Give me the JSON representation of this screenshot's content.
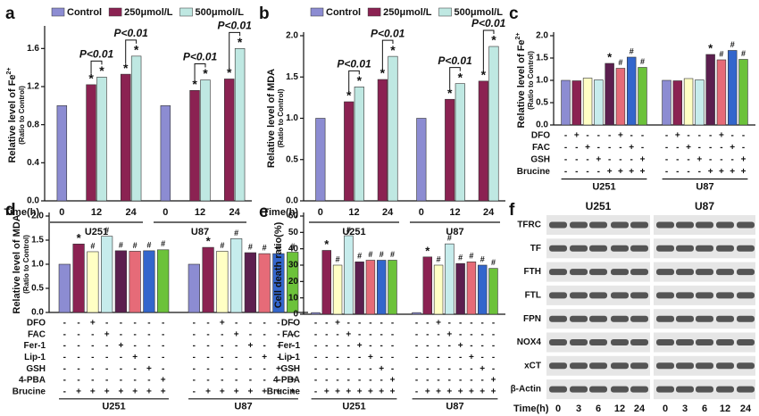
{
  "chart_data": [
    {
      "type": "bar",
      "panel": "a",
      "ylabel": "Relative level of Fe",
      "ylabel_sup": "2+",
      "ylabel2": "(Ratio to Control)",
      "xlabel": "Time(h)",
      "categories": [
        "0",
        "12",
        "24",
        "0",
        "12",
        "24"
      ],
      "groups": [
        "U251",
        "U87"
      ],
      "legend": "top",
      "series": [
        {
          "name": "Control",
          "color": "#8c8cd2",
          "values": [
            1.0,
            null,
            null,
            1.0,
            null,
            null
          ]
        },
        {
          "name": "250μmol/L",
          "color": "#8b2252",
          "values": [
            null,
            1.22,
            1.33,
            null,
            1.16,
            1.28
          ],
          "sig": [
            null,
            "*",
            "*",
            null,
            "*",
            "*"
          ]
        },
        {
          "name": "500μmol/L",
          "color": "#bfe8e2",
          "values": [
            null,
            1.3,
            1.52,
            null,
            1.27,
            1.6
          ],
          "sig": [
            null,
            "*",
            "*",
            null,
            "*",
            "*"
          ]
        }
      ],
      "comparison_labels": [
        null,
        "P<0.01",
        "P<0.01",
        null,
        "P<0.01",
        "P<0.01"
      ],
      "ylim": [
        0,
        1.8
      ],
      "yticks": [
        {
          "value": 0,
          "label": "0.0"
        },
        0.4,
        0.8,
        1.2,
        1.6
      ]
    },
    {
      "type": "bar",
      "panel": "b",
      "ylabel": "Relative level of MDA",
      "ylabel2": "(Ratio to Control)",
      "xlabel": "Time(h)",
      "categories": [
        "0",
        "12",
        "24",
        "0",
        "12",
        "24"
      ],
      "groups": [
        "U251",
        "U87"
      ],
      "legend": "top",
      "series": [
        {
          "name": "Control",
          "color": "#8c8cd2",
          "values": [
            1.0,
            null,
            null,
            1.0,
            null,
            null
          ]
        },
        {
          "name": "250μmol/L",
          "color": "#8b2252",
          "values": [
            null,
            1.2,
            1.47,
            null,
            1.23,
            1.45
          ],
          "sig": [
            null,
            "*",
            "*",
            null,
            "*",
            "*"
          ]
        },
        {
          "name": "500μmol/L",
          "color": "#bfe8e2",
          "values": [
            null,
            1.38,
            1.75,
            null,
            1.42,
            1.87
          ],
          "sig": [
            null,
            "*",
            "*",
            null,
            "*",
            "*"
          ]
        }
      ],
      "comparison_labels": [
        null,
        "P<0.01",
        "P<0.01",
        null,
        "P<0.01",
        "P<0.01"
      ],
      "ylim": [
        0,
        2.0
      ],
      "yticks": [
        {
          "value": 0,
          "label": "0.0"
        },
        0.5,
        {
          "value": 1,
          "label": "1.0"
        },
        1.5,
        {
          "value": 2,
          "label": "2.0"
        }
      ]
    },
    {
      "type": "bar",
      "panel": "c",
      "ylabel": "Relative level of Fe",
      "ylabel_sup": "2+",
      "ylabel2": "(Ratio to Control)",
      "colors": [
        "#8c8cd2",
        "#8b2252",
        "#ffffc4",
        "#c6ecec",
        "#5c1f4f",
        "#e66b78",
        "#3366cc",
        "#6cc23a"
      ],
      "bar_groups": [
        {
          "name": "U251",
          "values": [
            1.0,
            0.99,
            1.05,
            1.01,
            1.38,
            1.27,
            1.52,
            1.29
          ],
          "sig": [
            null,
            null,
            null,
            null,
            "*",
            "#",
            "#",
            "#"
          ]
        },
        {
          "name": "U87",
          "values": [
            1.0,
            0.99,
            1.04,
            1.01,
            1.58,
            1.46,
            1.67,
            1.47
          ],
          "sig": [
            null,
            null,
            null,
            null,
            "*",
            "#",
            "#",
            "#"
          ]
        }
      ],
      "table": [
        {
          "name": "DFO",
          "signs": [
            "-",
            "+",
            "-",
            "-",
            "-",
            "+",
            "-",
            "-"
          ]
        },
        {
          "name": "FAC",
          "signs": [
            "-",
            "-",
            "+",
            "-",
            "-",
            "-",
            "+",
            "-"
          ]
        },
        {
          "name": "GSH",
          "signs": [
            "-",
            "-",
            "-",
            "+",
            "-",
            "-",
            "-",
            "+"
          ]
        },
        {
          "name": "Brucine",
          "signs": [
            "-",
            "-",
            "-",
            "-",
            "+",
            "+",
            "+",
            "+"
          ]
        }
      ],
      "ylim": [
        0,
        2.0
      ],
      "yticks": [
        {
          "value": 0,
          "label": "0.0"
        },
        0.5,
        {
          "value": 1,
          "label": "1.0"
        },
        1.5,
        {
          "value": 2,
          "label": "2.0"
        }
      ]
    },
    {
      "type": "bar",
      "panel": "d",
      "ylabel": "Relative level of MDA",
      "ylabel2": "(Ratio to Control)",
      "colors": [
        "#8c8cd2",
        "#8b2252",
        "#ffffc4",
        "#c6ecec",
        "#5c1f4f",
        "#e66b78",
        "#3366cc",
        "#6cc23a"
      ],
      "bar_groups": [
        {
          "name": "U251",
          "values": [
            1.0,
            1.42,
            1.26,
            1.58,
            1.28,
            1.27,
            1.28,
            1.3
          ],
          "sig": [
            null,
            "*",
            "#",
            "#",
            "#",
            "#",
            "#",
            "#"
          ]
        },
        {
          "name": "U87",
          "values": [
            1.0,
            1.35,
            1.27,
            1.53,
            1.24,
            1.22,
            1.22,
            1.25
          ],
          "sig": [
            null,
            "*",
            "#",
            "#",
            "#",
            "#",
            "#",
            "#"
          ]
        }
      ],
      "table": [
        {
          "name": "DFO",
          "signs": [
            "-",
            "-",
            "+",
            "-",
            "-",
            "-",
            "-",
            "-"
          ]
        },
        {
          "name": "FAC",
          "signs": [
            "-",
            "-",
            "-",
            "+",
            "-",
            "-",
            "-",
            "-"
          ]
        },
        {
          "name": "Fer-1",
          "signs": [
            "-",
            "-",
            "-",
            "-",
            "+",
            "-",
            "-",
            "-"
          ]
        },
        {
          "name": "Lip-1",
          "signs": [
            "-",
            "-",
            "-",
            "-",
            "-",
            "+",
            "-",
            "-"
          ]
        },
        {
          "name": "GSH",
          "signs": [
            "-",
            "-",
            "-",
            "-",
            "-",
            "-",
            "+",
            "-"
          ]
        },
        {
          "name": "4-PBA",
          "signs": [
            "-",
            "-",
            "-",
            "-",
            "-",
            "-",
            "-",
            "+"
          ]
        },
        {
          "name": "Brucine",
          "signs": [
            "-",
            "+",
            "+",
            "+",
            "+",
            "+",
            "+",
            "+"
          ]
        }
      ],
      "ylim": [
        0,
        2.0
      ],
      "yticks": [
        {
          "value": 0,
          "label": "0.0"
        },
        0.5,
        {
          "value": 1,
          "label": "1.0"
        },
        1.5,
        {
          "value": 2,
          "label": "2.0"
        }
      ]
    },
    {
      "type": "bar",
      "panel": "e",
      "ylabel": "Cell death ratio(%)",
      "colors": [
        "#8c8cd2",
        "#8b2252",
        "#ffffc4",
        "#c6ecec",
        "#5c1f4f",
        "#e66b78",
        "#3366cc",
        "#6cc23a"
      ],
      "bar_groups": [
        {
          "name": "U251",
          "values": [
            1,
            39,
            30,
            48,
            32,
            33,
            33,
            33
          ],
          "sig": [
            null,
            "*",
            "#",
            "#",
            "#",
            "#",
            "#",
            "#"
          ]
        },
        {
          "name": "U87",
          "values": [
            1,
            35,
            30,
            43,
            31,
            32,
            30,
            28
          ],
          "sig": [
            null,
            "*",
            "#",
            "#",
            "#",
            "#",
            "#",
            "#"
          ]
        }
      ],
      "table": [
        {
          "name": "DFO",
          "signs": [
            "-",
            "-",
            "+",
            "-",
            "-",
            "-",
            "-",
            "-"
          ]
        },
        {
          "name": "FAC",
          "signs": [
            "-",
            "-",
            "-",
            "+",
            "-",
            "-",
            "-",
            "-"
          ]
        },
        {
          "name": "Fer-1",
          "signs": [
            "-",
            "-",
            "-",
            "-",
            "+",
            "-",
            "-",
            "-"
          ]
        },
        {
          "name": "Lip-1",
          "signs": [
            "-",
            "-",
            "-",
            "-",
            "-",
            "+",
            "-",
            "-"
          ]
        },
        {
          "name": "GSH",
          "signs": [
            "-",
            "-",
            "-",
            "-",
            "-",
            "-",
            "+",
            "-"
          ]
        },
        {
          "name": "4-PBA",
          "signs": [
            "-",
            "-",
            "-",
            "-",
            "-",
            "-",
            "-",
            "+"
          ]
        },
        {
          "name": "Brucine",
          "signs": [
            "-",
            "+",
            "+",
            "+",
            "+",
            "+",
            "+",
            "+"
          ]
        }
      ],
      "ylim": [
        0,
        60
      ],
      "yticks": [
        0,
        10,
        20,
        30,
        40,
        50,
        60
      ]
    },
    {
      "type": "blot",
      "panel": "f",
      "groups": [
        "U251",
        "U87"
      ],
      "xlabel": "Time(h)",
      "times": [
        "0",
        "3",
        "6",
        "12",
        "24"
      ],
      "rows": [
        "TFRC",
        "TF",
        "FTH",
        "FTL",
        "FPN",
        "NOX4",
        "xCT",
        "β-Actin"
      ]
    }
  ]
}
